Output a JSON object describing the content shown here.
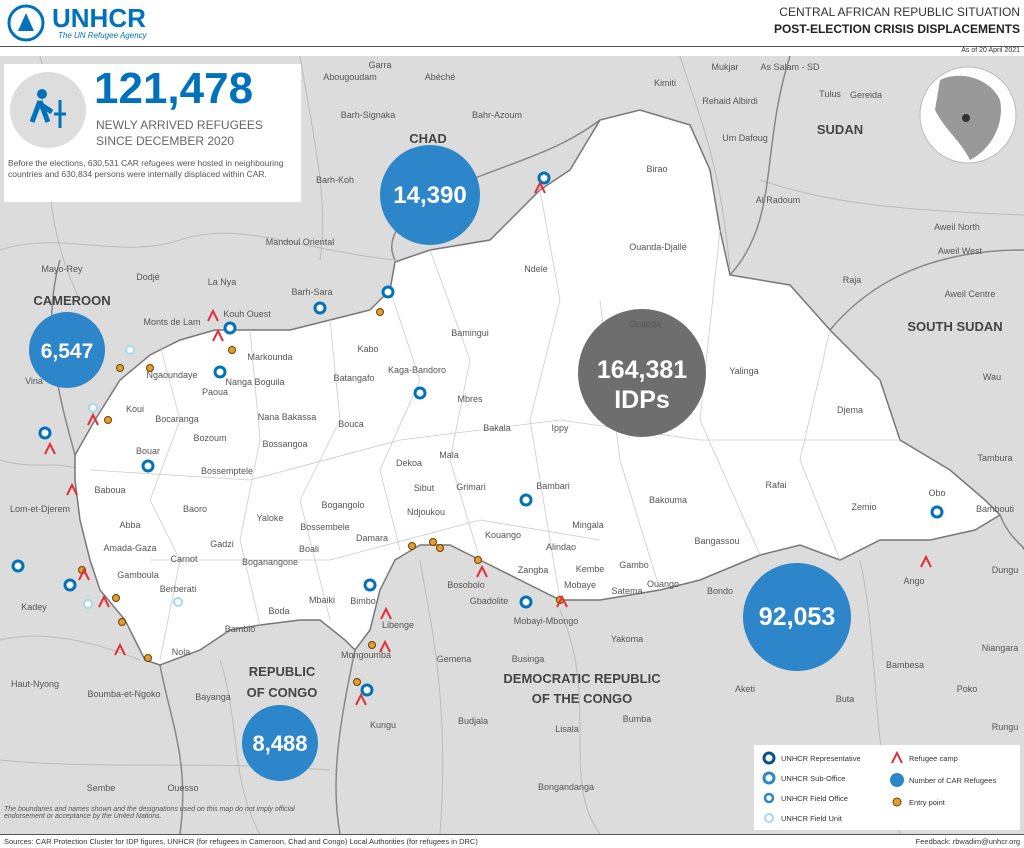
{
  "header": {
    "logo": "UNHCR",
    "tagline": "The UN Refugee Agency",
    "title_line1": "CENTRAL AFRICAN REPUBLIC SITUATION",
    "title_line2": "POST-ELECTION CRISIS DISPLACEMENTS",
    "date": "As of 20 April 2021"
  },
  "stat": {
    "value": "121,478",
    "label_line1": "NEWLY ARRIVED REFUGEES",
    "label_line2": "SINCE DECEMBER 2020",
    "note": "Before the elections, 630,531 CAR refugees were hosted in neighbouring countries and 630,834 persons were internally displaced within CAR."
  },
  "bubbles": [
    {
      "country": "CHAD",
      "value": "14,390"
    },
    {
      "country": "CAMEROON",
      "value": "6,547"
    },
    {
      "value": "164,381",
      "unit": "IDPs"
    },
    {
      "value": "92,053"
    },
    {
      "country_lines": [
        "REPUBLIC",
        "OF CONGO"
      ],
      "value": "8,488"
    }
  ],
  "countries": [
    "SUDAN",
    "SOUTH SUDAN"
  ],
  "drc_lines": [
    "DEMOCRATIC REPUBLIC",
    "OF THE CONGO"
  ],
  "places": [
    "Garra",
    "Abéché",
    "Abougoudam",
    "Mukjar",
    "As Salam - SD",
    "Kimiti",
    "Rehaid Albirdi",
    "Tulus",
    "Gereida",
    "Um Dafoug",
    "Barh-Signaka",
    "Bahr-Azoum",
    "Birao",
    "Barh-Koh",
    "Al Radoum",
    "Mandoul Oriental",
    "Ouanda-Djallé",
    "Aweil North",
    "Aweil West",
    "Mayo-Rey",
    "Dodjé",
    "La Nya",
    "Ndele",
    "Raja",
    "Barh-Sara",
    "Aweil Centre",
    "Monts de Lam",
    "Kouh Ouest",
    "Bamingui",
    "Ouadda",
    "Markounda",
    "Kabo",
    "Vina",
    "Ngaoundaye",
    "Nanga Boguila",
    "Batangafo",
    "Kaga-Bandoro",
    "Yalinga",
    "Wau",
    "Paoua",
    "Koui",
    "Mbres",
    "Bocaranga",
    "Nana Bakassa",
    "Bouca",
    "Bakala",
    "Ippy",
    "Djema",
    "Bozoum",
    "Bossangoa",
    "Tambura",
    "Bouar",
    "Baboua",
    "Dekoa",
    "Mala",
    "Sibut",
    "Grimari",
    "Bambari",
    "Rafai",
    "Bakouma",
    "Bossemptele",
    "Lom-et-Djerem",
    "Baoro",
    "Bogangolo",
    "Ndjoukou",
    "Zemio",
    "Obo",
    "Yaloke",
    "Bambouti",
    "Abba",
    "Bossembele",
    "Damara",
    "Kouango",
    "Mingala",
    "Alindao",
    "Amada-Gaza",
    "Bangassou",
    "Gadzi",
    "Carnot",
    "Boali",
    "Boganangone",
    "Kembe",
    "Gambo",
    "Zangba",
    "Ango",
    "Dungu",
    "Berberati",
    "Gamboula",
    "Bosobolo",
    "Satema",
    "Ouango",
    "Mobaye",
    "Bondo",
    "Kadey",
    "Bimbo",
    "Boda",
    "Mbaiki",
    "Gbadolite",
    "Mobayi-Mbongo",
    "Bambio",
    "Yakoma",
    "Nola",
    "Libenge",
    "Gemena",
    "Businga",
    "Mongoumba",
    "Bambesa",
    "Niangara",
    "Aketi",
    "Poko",
    "Haut-Nyong",
    "Boumba-et-Ngoko",
    "Bayanga",
    "Bumba",
    "Buta",
    "Budjala",
    "Lisala",
    "Rungu",
    "Kungu",
    "Bongandanga",
    "Sembe",
    "Ouesso"
  ],
  "legend": [
    "UNHCR Representative",
    "UNHCR Sub-Office",
    "UNHCR Field Office",
    "UNHCR Field Unit",
    "Refugee camp",
    "Number of CAR Refugees",
    "Entry point"
  ],
  "disclaimer": "The boundaries and names shown and the designations used on this map do not imply official endorsement or acceptance by the United Nations.",
  "footer": {
    "sources": "Sources: CAR Protection Cluster for IDP figures, UNHCR (for refugees in Cameroon, Chad and Congo) Local Authorities (for refugees in DRC)",
    "feedback": "Feedback: rbwadim@unhcr.org"
  }
}
